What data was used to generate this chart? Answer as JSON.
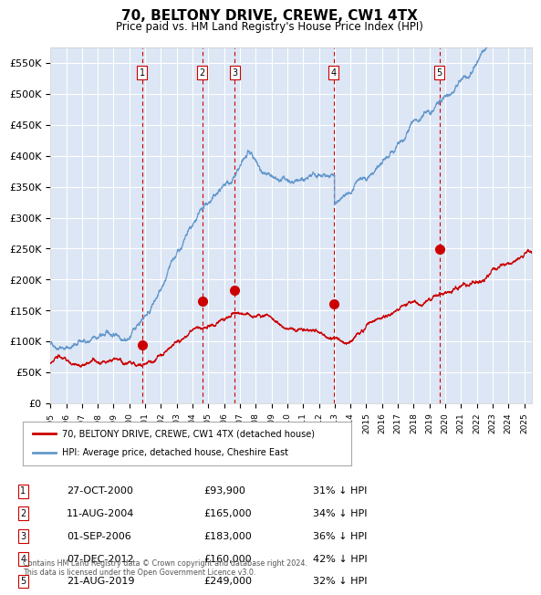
{
  "title": "70, BELTONY DRIVE, CREWE, CW1 4TX",
  "subtitle": "Price paid vs. HM Land Registry's House Price Index (HPI)",
  "ylabel": "",
  "background_color": "#dce6f5",
  "plot_bg_color": "#dce6f5",
  "ylim": [
    0,
    575000
  ],
  "yticks": [
    0,
    50000,
    100000,
    150000,
    200000,
    250000,
    300000,
    350000,
    400000,
    450000,
    500000,
    550000
  ],
  "ytick_labels": [
    "£0",
    "£50K",
    "£100K",
    "£150K",
    "£200K",
    "£250K",
    "£300K",
    "£350K",
    "£400K",
    "£450K",
    "£500K",
    "£550K"
  ],
  "x_start_year": 1995.0,
  "x_end_year": 2025.5,
  "legend1": "70, BELTONY DRIVE, CREWE, CW1 4TX (detached house)",
  "legend2": "HPI: Average price, detached house, Cheshire East",
  "sale_color": "#cc0000",
  "hpi_color": "#6699cc",
  "sale_marker_color": "#cc0000",
  "dashed_line_color": "#cc0000",
  "footer": "Contains HM Land Registry data © Crown copyright and database right 2024.\nThis data is licensed under the Open Government Licence v3.0.",
  "sales": [
    {
      "num": 1,
      "date_label": "27-OCT-2000",
      "price_label": "£93,900",
      "hpi_label": "31% ↓ HPI",
      "year": 2000.82,
      "price": 93900
    },
    {
      "num": 2,
      "date_label": "11-AUG-2004",
      "price_label": "£165,000",
      "hpi_label": "34% ↓ HPI",
      "year": 2004.61,
      "price": 165000
    },
    {
      "num": 3,
      "date_label": "01-SEP-2006",
      "price_label": "£183,000",
      "hpi_label": "36% ↓ HPI",
      "year": 2006.67,
      "price": 183000
    },
    {
      "num": 4,
      "date_label": "07-DEC-2012",
      "price_label": "£160,000",
      "hpi_label": "42% ↓ HPI",
      "year": 2012.93,
      "price": 160000
    },
    {
      "num": 5,
      "date_label": "21-AUG-2019",
      "price_label": "£249,000",
      "hpi_label": "32% ↓ HPI",
      "year": 2019.64,
      "price": 249000
    }
  ]
}
